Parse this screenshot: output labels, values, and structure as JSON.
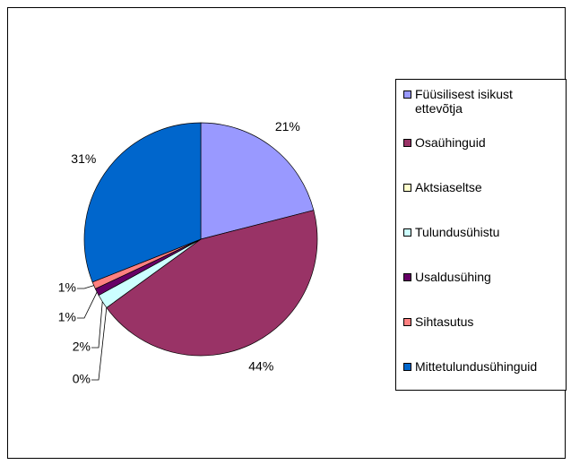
{
  "chart_data": {
    "type": "pie",
    "categories": [
      "Füüsilisest isikust ettevõtja",
      "Osaühinguid",
      "Aktsiaseltse",
      "Tulundusühistu",
      "Usaldusühing",
      "Sihtasutus",
      "Mittetulundusühinguid"
    ],
    "values": [
      21,
      44,
      0,
      2,
      1,
      1,
      31
    ],
    "value_labels": [
      "21%",
      "44%",
      "0%",
      "2%",
      "1%",
      "1%",
      "31%"
    ],
    "colors": [
      "#9999ff",
      "#993366",
      "#ffffcc",
      "#ccffff",
      "#660066",
      "#ff8080",
      "#0066cc"
    ],
    "legend": "right"
  }
}
